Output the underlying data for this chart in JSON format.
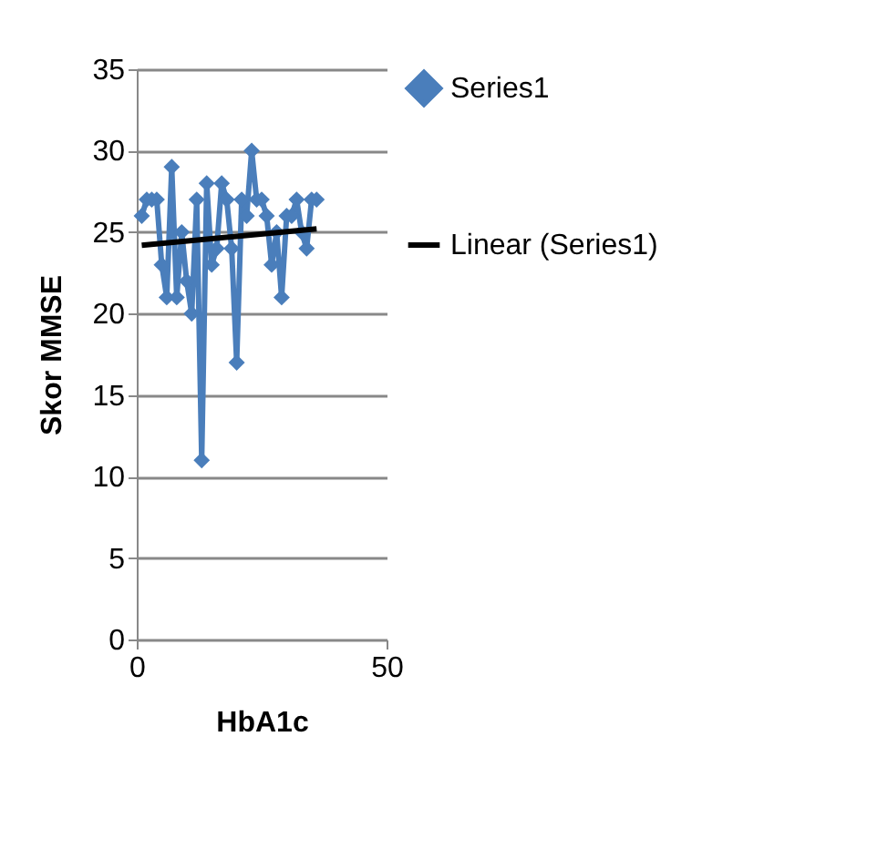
{
  "chart_data": {
    "type": "line",
    "xlabel": "HbA1c",
    "ylabel": "Skor MMSE",
    "xlim": [
      0,
      50
    ],
    "xticks": [
      0,
      50
    ],
    "ylim": [
      0,
      35
    ],
    "yticks": [
      0,
      5,
      10,
      15,
      20,
      25,
      30,
      35
    ],
    "grid": "y",
    "legend": "right",
    "marker": "diamond",
    "line_style": "solid",
    "x": [
      1,
      2,
      3,
      4,
      5,
      6,
      7,
      8,
      9,
      10,
      11,
      12,
      13,
      14,
      15,
      16,
      17,
      18,
      19,
      20,
      21,
      22,
      23,
      24,
      25,
      26,
      27,
      28,
      29,
      30,
      31,
      32,
      33,
      34,
      35,
      36
    ],
    "series": [
      {
        "name": "Series1",
        "color": "#4a7ebb",
        "values": [
          26,
          27,
          27,
          27,
          23,
          21,
          29,
          21,
          25,
          22,
          20,
          27,
          11,
          28,
          23,
          24,
          28,
          27,
          24,
          17,
          27,
          26,
          30,
          27,
          27,
          26,
          23,
          25,
          21,
          26,
          26,
          27,
          25,
          24,
          27,
          27
        ]
      },
      {
        "name": "Linear (Series1)",
        "type": "line",
        "marker": "none",
        "color": "#000000",
        "x": [
          1,
          36
        ],
        "values": [
          24.2,
          25.2
        ]
      }
    ]
  }
}
